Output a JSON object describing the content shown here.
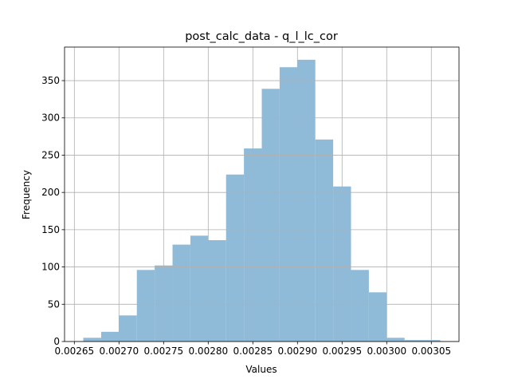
{
  "chart_data": {
    "type": "histogram",
    "title": "post_calc_data - q_l_lc_cor",
    "xlabel": "Values",
    "ylabel": "Frequency",
    "bins": [
      0.00266,
      0.00268,
      0.0027,
      0.00272,
      0.00274,
      0.00276,
      0.00278,
      0.0028,
      0.00282,
      0.00284,
      0.00286,
      0.00288,
      0.0029,
      0.00292,
      0.00294,
      0.00296,
      0.00298,
      0.003,
      0.00302,
      0.00304,
      0.00306
    ],
    "values": [
      5,
      13,
      35,
      96,
      102,
      130,
      142,
      136,
      224,
      259,
      339,
      368,
      378,
      271,
      208,
      96,
      66,
      5,
      2,
      2
    ],
    "color": "#8fbbd9",
    "xlim": [
      0.002639,
      0.003081
    ],
    "xticks": [
      0.00265,
      {
        "value": 0.0027,
        "label": "0.00270"
      },
      0.00275,
      {
        "value": 0.0028,
        "label": "0.00280"
      },
      0.00285,
      {
        "value": 0.0029,
        "label": "0.00290"
      },
      0.00295,
      {
        "value": 0.003,
        "label": "0.00300"
      },
      0.00305
    ],
    "ylim": [
      0,
      395
    ],
    "yticks": [
      0,
      50,
      100,
      150,
      200,
      250,
      300,
      350
    ],
    "grid": true
  }
}
